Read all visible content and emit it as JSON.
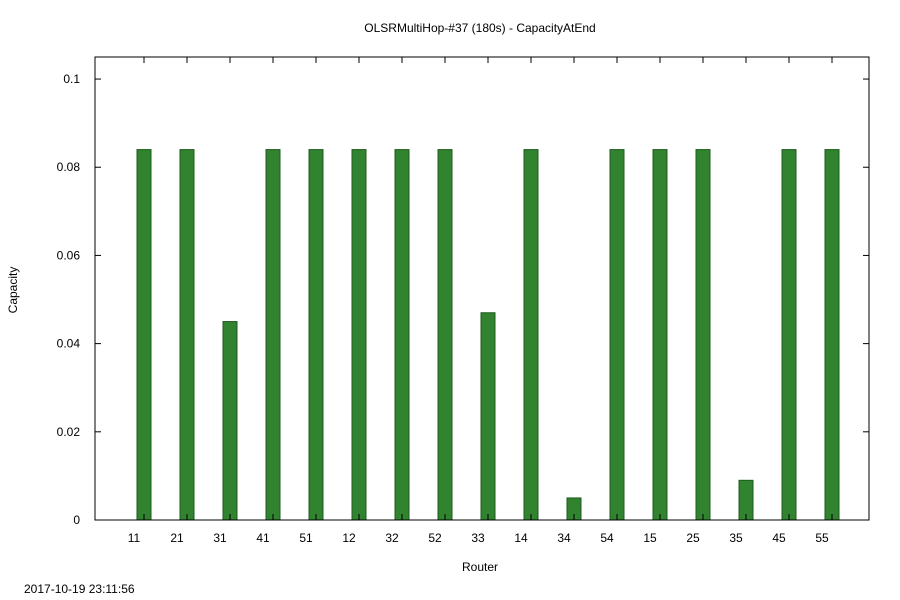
{
  "chart_data": {
    "type": "bar",
    "title": "OLSRMultiHop-#37 (180s) - CapacityAtEnd",
    "xlabel": "Router",
    "ylabel": "Capacity",
    "categories": [
      "11",
      "21",
      "31",
      "41",
      "51",
      "12",
      "32",
      "52",
      "33",
      "14",
      "34",
      "54",
      "15",
      "25",
      "35",
      "45",
      "55"
    ],
    "values": [
      0.084,
      0.084,
      0.045,
      0.084,
      0.084,
      0.084,
      0.084,
      0.084,
      0.047,
      0.084,
      0.005,
      0.084,
      0.084,
      0.084,
      0.009,
      0.084,
      0.084
    ],
    "ylim": [
      0,
      0.105
    ],
    "yticks": [
      0,
      0.02,
      0.04,
      0.06,
      0.08,
      0.1
    ],
    "ytick_labels": [
      "0",
      "0.02",
      "0.04",
      "0.06",
      "0.08",
      "0.1"
    ],
    "bar_color": "#31832f",
    "grid": false,
    "legend": "none"
  },
  "timestamp": "2017-10-19 23:11:56"
}
